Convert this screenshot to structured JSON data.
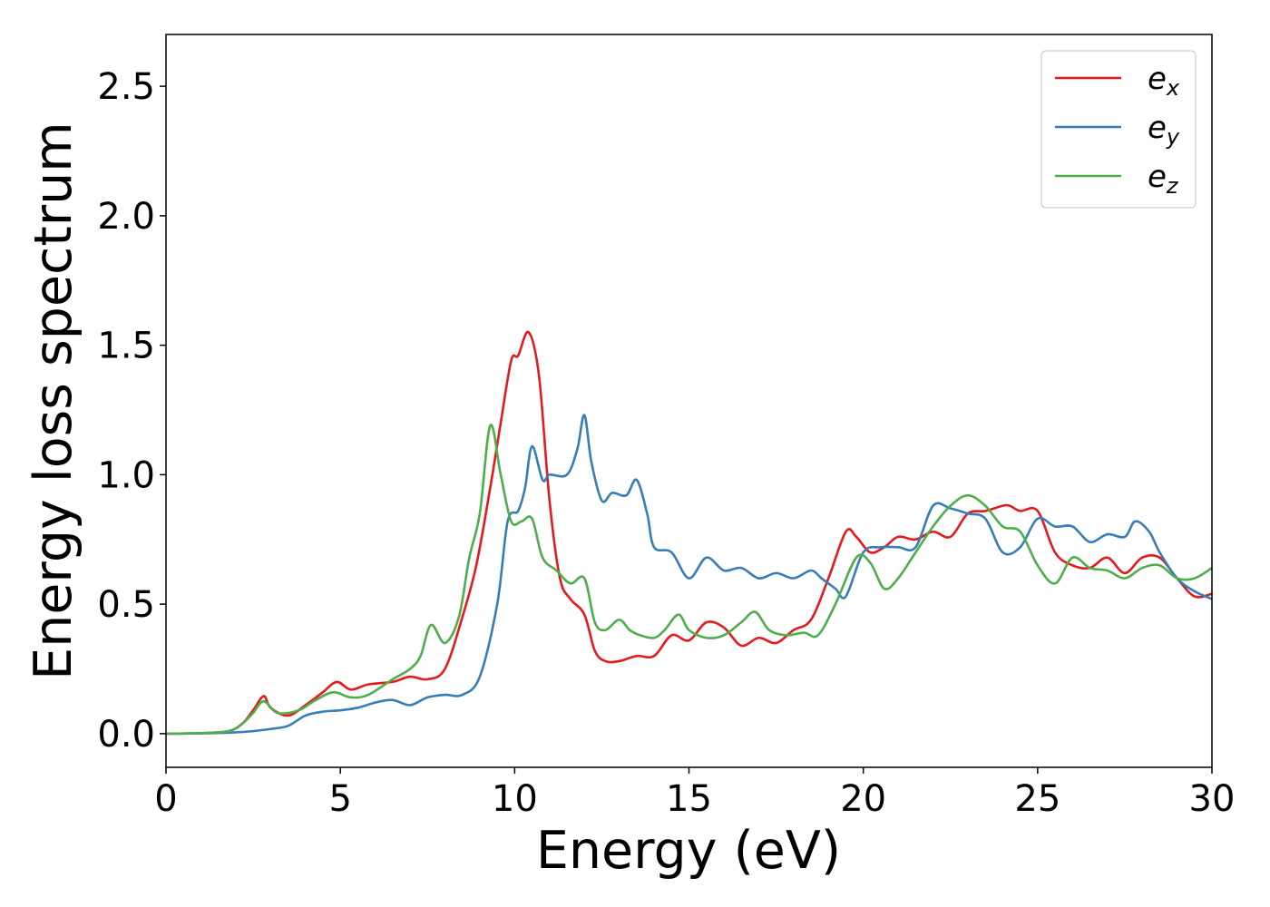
{
  "chart_data": {
    "type": "line",
    "title": "",
    "xlabel": "Energy (eV)",
    "ylabel": "Energy loss spectrum",
    "xlim": [
      0,
      30
    ],
    "ylim": [
      -0.13,
      2.7
    ],
    "xticks": [
      0,
      5,
      10,
      15,
      20,
      25,
      30
    ],
    "xtick_labels": [
      "0",
      "5",
      "10",
      "15",
      "20",
      "25",
      "30"
    ],
    "yticks": [
      0.0,
      0.5,
      1.0,
      1.5,
      2.0,
      2.5
    ],
    "ytick_labels": [
      "0.0",
      "0.5",
      "1.0",
      "1.5",
      "2.0",
      "2.5"
    ],
    "grid": false,
    "legend_position": "top-right",
    "series": [
      {
        "name": "e_x",
        "label_base": "e",
        "label_sub": "x",
        "color": "#e41a1c",
        "x": [
          0,
          1,
          1.8,
          2.2,
          2.5,
          2.8,
          3.0,
          3.5,
          4.0,
          4.5,
          4.9,
          5.3,
          5.8,
          6.5,
          7.0,
          7.5,
          8.0,
          8.5,
          8.9,
          9.3,
          9.6,
          9.9,
          10.1,
          10.4,
          10.7,
          11.0,
          11.3,
          11.6,
          12.0,
          12.3,
          12.6,
          13.0,
          13.5,
          14.0,
          14.5,
          15.0,
          15.5,
          16.0,
          16.5,
          17.0,
          17.5,
          18.0,
          18.5,
          19.0,
          19.5,
          19.8,
          20.2,
          20.6,
          21.0,
          21.5,
          22.0,
          22.5,
          23.0,
          23.5,
          24.0,
          24.2,
          24.5,
          25.0,
          25.5,
          26.0,
          26.5,
          27.0,
          27.5,
          28.0,
          28.5,
          29.0,
          29.5,
          30
        ],
        "y": [
          0.0,
          0.002,
          0.01,
          0.04,
          0.09,
          0.145,
          0.1,
          0.07,
          0.11,
          0.16,
          0.2,
          0.17,
          0.19,
          0.2,
          0.22,
          0.21,
          0.25,
          0.45,
          0.65,
          0.95,
          1.2,
          1.44,
          1.46,
          1.55,
          1.38,
          0.9,
          0.6,
          0.52,
          0.46,
          0.32,
          0.28,
          0.28,
          0.3,
          0.3,
          0.38,
          0.36,
          0.43,
          0.41,
          0.34,
          0.37,
          0.35,
          0.4,
          0.44,
          0.6,
          0.78,
          0.76,
          0.7,
          0.72,
          0.76,
          0.75,
          0.78,
          0.76,
          0.85,
          0.86,
          0.88,
          0.88,
          0.86,
          0.86,
          0.7,
          0.65,
          0.64,
          0.68,
          0.62,
          0.68,
          0.68,
          0.6,
          0.53,
          0.54
        ]
      },
      {
        "name": "e_y",
        "label_base": "e",
        "label_sub": "y",
        "color": "#377eb8",
        "x": [
          0,
          1,
          2.0,
          2.5,
          3.0,
          3.5,
          4.0,
          4.5,
          5.0,
          5.5,
          6.0,
          6.5,
          7.0,
          7.5,
          8.0,
          8.5,
          9.0,
          9.5,
          9.8,
          10.1,
          10.3,
          10.5,
          10.8,
          11.0,
          11.5,
          11.8,
          12.0,
          12.2,
          12.5,
          12.8,
          13.2,
          13.5,
          13.8,
          14.0,
          14.5,
          15.0,
          15.5,
          16.0,
          16.5,
          17.0,
          17.5,
          18.0,
          18.5,
          18.8,
          19.2,
          19.5,
          20.0,
          20.5,
          21.0,
          21.5,
          22.0,
          22.5,
          23.0,
          23.5,
          24.0,
          24.5,
          25.0,
          25.5,
          26.0,
          26.5,
          27.0,
          27.5,
          27.8,
          28.2,
          28.5,
          29.0,
          29.5,
          30
        ],
        "y": [
          0.0,
          0.001,
          0.005,
          0.01,
          0.018,
          0.03,
          0.07,
          0.085,
          0.09,
          0.1,
          0.12,
          0.13,
          0.11,
          0.14,
          0.15,
          0.15,
          0.22,
          0.5,
          0.82,
          0.86,
          0.95,
          1.11,
          0.98,
          1.0,
          1.0,
          1.1,
          1.23,
          1.05,
          0.9,
          0.93,
          0.92,
          0.98,
          0.85,
          0.72,
          0.7,
          0.6,
          0.68,
          0.63,
          0.64,
          0.6,
          0.62,
          0.6,
          0.63,
          0.6,
          0.56,
          0.53,
          0.7,
          0.72,
          0.72,
          0.72,
          0.88,
          0.87,
          0.85,
          0.83,
          0.7,
          0.72,
          0.83,
          0.8,
          0.8,
          0.74,
          0.77,
          0.76,
          0.82,
          0.78,
          0.7,
          0.6,
          0.55,
          0.52
        ]
      },
      {
        "name": "e_z",
        "label_base": "e",
        "label_sub": "z",
        "color": "#4daf4a",
        "x": [
          0,
          1,
          1.8,
          2.2,
          2.5,
          2.8,
          3.2,
          3.8,
          4.3,
          4.8,
          5.3,
          5.8,
          6.5,
          7.0,
          7.3,
          7.6,
          8.0,
          8.4,
          8.7,
          9.0,
          9.3,
          9.6,
          9.9,
          10.2,
          10.5,
          10.8,
          11.2,
          11.6,
          12.0,
          12.3,
          12.6,
          13.0,
          13.3,
          13.6,
          14.0,
          14.3,
          14.7,
          15.0,
          15.5,
          16.0,
          16.5,
          16.9,
          17.3,
          17.8,
          18.3,
          18.7,
          19.2,
          19.8,
          20.2,
          20.6,
          21.0,
          21.5,
          22.0,
          22.5,
          23.0,
          23.5,
          24.0,
          24.5,
          25.0,
          25.5,
          26.0,
          26.5,
          27.0,
          27.5,
          28.0,
          28.5,
          29.0,
          29.5,
          30
        ],
        "y": [
          0.0,
          0.002,
          0.01,
          0.04,
          0.08,
          0.125,
          0.08,
          0.09,
          0.13,
          0.16,
          0.14,
          0.15,
          0.21,
          0.25,
          0.3,
          0.42,
          0.35,
          0.45,
          0.68,
          0.85,
          1.19,
          1.0,
          0.82,
          0.82,
          0.83,
          0.68,
          0.63,
          0.58,
          0.6,
          0.43,
          0.4,
          0.44,
          0.4,
          0.38,
          0.37,
          0.4,
          0.46,
          0.4,
          0.37,
          0.38,
          0.43,
          0.47,
          0.4,
          0.38,
          0.39,
          0.38,
          0.5,
          0.68,
          0.66,
          0.56,
          0.6,
          0.7,
          0.8,
          0.88,
          0.92,
          0.88,
          0.8,
          0.78,
          0.65,
          0.58,
          0.68,
          0.64,
          0.63,
          0.6,
          0.64,
          0.65,
          0.6,
          0.6,
          0.64
        ]
      }
    ]
  }
}
